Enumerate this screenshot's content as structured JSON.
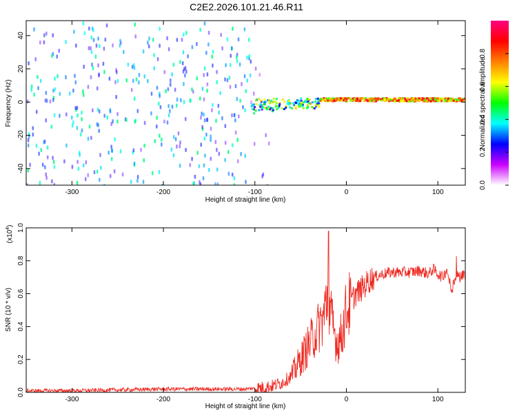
{
  "title": "C2E2.2026.101.21.46.R11",
  "colors": {
    "spectrogram_points": "#6a00e8",
    "snr_line": "#ee2a22",
    "axis": "#000000"
  },
  "chart_data": [
    {
      "type": "heatmap",
      "name": "spectrogram",
      "xlabel": "Height of straight line (km)",
      "ylabel": "Frequency (Hz)",
      "xlim": [
        -350,
        130
      ],
      "ylim": [
        -50,
        49
      ],
      "x_ticks": [
        -300,
        -200,
        -100,
        0,
        100
      ],
      "x_tick_labels": [
        "-300",
        "-200",
        "-100",
        "0",
        "100"
      ],
      "y_ticks": [
        -40,
        -20,
        0,
        20,
        40
      ],
      "y_tick_labels": [
        "-40",
        "-20",
        "0",
        "20",
        "40"
      ],
      "colorbar": {
        "label": "Normalized spectral amplitude",
        "range": [
          0,
          1
        ],
        "ticks": [
          0,
          0.2,
          0.4,
          0.6,
          0.8
        ],
        "tick_labels": [
          "0.0",
          "0.2",
          "0.4",
          "0.6",
          "0.8"
        ],
        "colormap": [
          "#ffffff",
          "#cc00ff",
          "#0000ff",
          "#00ffff",
          "#00ff00",
          "#ffff00",
          "#ff8000",
          "#ff0000",
          "#ff0080"
        ]
      },
      "regions": [
        {
          "description": "broadband noise",
          "x_range": [
            -350,
            -105
          ],
          "freq_range": [
            -50,
            49
          ],
          "amplitude_range": [
            0.05,
            0.3
          ]
        },
        {
          "description": "faint noise",
          "x_range": [
            -105,
            -85
          ],
          "freq_range": [
            -50,
            49
          ],
          "amplitude_range": [
            0.0,
            0.1
          ]
        },
        {
          "description": "signal onset",
          "x_range": [
            -105,
            -30
          ],
          "freq_center": 0,
          "freq_spread": 6,
          "amplitude_range": [
            0.2,
            0.7
          ]
        },
        {
          "description": "steady carrier",
          "x_range": [
            -30,
            130
          ],
          "freq_center": 2,
          "freq_spread": 2,
          "amplitude_range": [
            0.5,
            0.95
          ]
        }
      ]
    },
    {
      "type": "line",
      "name": "snr",
      "xlabel": "Height of straight line (km)",
      "ylabel": "SNR (10 * v/v)",
      "y_multiplier": "(x10",
      "y_multiplier_exp": "4",
      "y_multiplier_close": ")",
      "xlim": [
        -350,
        130
      ],
      "ylim": [
        0,
        1.0
      ],
      "x_ticks": [
        -300,
        -200,
        -100,
        0,
        100
      ],
      "x_tick_labels": [
        "-300",
        "-200",
        "-100",
        "0",
        "100"
      ],
      "y_ticks": [
        0,
        0.2,
        0.4,
        0.6,
        0.8,
        1.0
      ],
      "y_tick_labels": [
        "0.0",
        "0.2",
        "0.4",
        "0.6",
        "0.8",
        "1.0"
      ],
      "series": [
        {
          "name": "SNR",
          "x": [
            -350,
            -300,
            -250,
            -200,
            -150,
            -110,
            -100,
            -90,
            -80,
            -70,
            -60,
            -50,
            -45,
            -40,
            -35,
            -30,
            -25,
            -22,
            -20,
            -18,
            -15,
            -10,
            -5,
            0,
            5,
            10,
            15,
            20,
            25,
            30,
            40,
            50,
            60,
            70,
            80,
            90,
            95,
            100,
            105,
            110,
            115,
            120,
            125,
            130
          ],
          "values": [
            0.01,
            0.01,
            0.015,
            0.02,
            0.02,
            0.02,
            0.025,
            0.03,
            0.04,
            0.06,
            0.1,
            0.2,
            0.25,
            0.3,
            0.35,
            0.4,
            0.45,
            0.55,
            0.6,
            0.5,
            0.4,
            0.3,
            0.35,
            0.5,
            0.55,
            0.6,
            0.62,
            0.65,
            0.68,
            0.7,
            0.72,
            0.73,
            0.73,
            0.73,
            0.74,
            0.72,
            0.75,
            0.72,
            0.7,
            0.75,
            0.62,
            0.72,
            0.7,
            0.72
          ]
        }
      ]
    }
  ]
}
